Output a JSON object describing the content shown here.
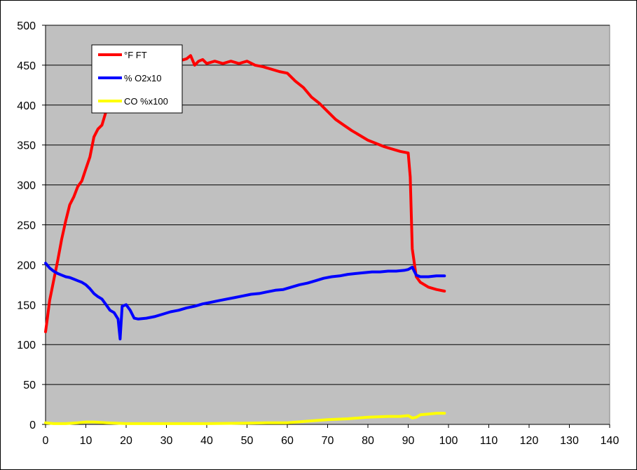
{
  "chart_data": {
    "type": "line",
    "title": "",
    "xlabel": "",
    "ylabel": "",
    "xlim": [
      0,
      140
    ],
    "ylim": [
      0,
      500
    ],
    "x_ticks": [
      0,
      10,
      20,
      30,
      40,
      50,
      60,
      70,
      80,
      90,
      100,
      110,
      120,
      130,
      140
    ],
    "y_ticks": [
      0,
      50,
      100,
      150,
      200,
      250,
      300,
      350,
      400,
      450,
      500
    ],
    "grid": "horizontal",
    "plot_background": "#C0C0C0",
    "legend_position": "top-left",
    "series": [
      {
        "name": "°F FT",
        "color": "#FF0000",
        "points": [
          [
            0,
            116
          ],
          [
            0.5,
            135
          ],
          [
            1,
            155
          ],
          [
            2,
            180
          ],
          [
            3,
            205
          ],
          [
            4,
            232
          ],
          [
            5,
            255
          ],
          [
            6,
            275
          ],
          [
            7,
            285
          ],
          [
            8,
            298
          ],
          [
            9,
            305
          ],
          [
            10,
            320
          ],
          [
            11,
            335
          ],
          [
            12,
            360
          ],
          [
            13,
            370
          ],
          [
            14,
            375
          ],
          [
            15,
            392
          ],
          [
            16,
            405
          ],
          [
            17,
            415
          ],
          [
            18,
            425
          ],
          [
            19,
            432
          ],
          [
            20,
            437
          ],
          [
            22,
            442
          ],
          [
            24,
            446
          ],
          [
            26,
            449
          ],
          [
            28,
            451
          ],
          [
            30,
            452
          ],
          [
            33,
            455
          ],
          [
            35,
            458
          ],
          [
            36,
            462
          ],
          [
            37,
            450
          ],
          [
            38,
            455
          ],
          [
            39,
            457
          ],
          [
            40,
            452
          ],
          [
            42,
            455
          ],
          [
            44,
            452
          ],
          [
            46,
            455
          ],
          [
            48,
            452
          ],
          [
            50,
            455
          ],
          [
            52,
            450
          ],
          [
            54,
            448
          ],
          [
            56,
            445
          ],
          [
            58,
            442
          ],
          [
            60,
            440
          ],
          [
            62,
            430
          ],
          [
            64,
            422
          ],
          [
            66,
            410
          ],
          [
            68,
            402
          ],
          [
            70,
            392
          ],
          [
            72,
            382
          ],
          [
            74,
            375
          ],
          [
            76,
            368
          ],
          [
            78,
            362
          ],
          [
            80,
            356
          ],
          [
            82,
            352
          ],
          [
            84,
            348
          ],
          [
            86,
            345
          ],
          [
            88,
            342
          ],
          [
            90,
            340
          ],
          [
            90.5,
            310
          ],
          [
            91,
            220
          ],
          [
            92,
            185
          ],
          [
            93,
            178
          ],
          [
            95,
            172
          ],
          [
            97,
            169
          ],
          [
            99,
            167
          ]
        ]
      },
      {
        "name": "% O2x10",
        "color": "#0000FF",
        "points": [
          [
            0,
            202
          ],
          [
            1,
            196
          ],
          [
            2,
            192
          ],
          [
            3,
            189
          ],
          [
            4,
            187
          ],
          [
            5,
            185
          ],
          [
            6,
            184
          ],
          [
            7,
            182
          ],
          [
            8,
            180
          ],
          [
            9,
            178
          ],
          [
            10,
            175
          ],
          [
            11,
            170
          ],
          [
            12,
            164
          ],
          [
            13,
            160
          ],
          [
            14,
            157
          ],
          [
            15,
            150
          ],
          [
            16,
            143
          ],
          [
            17,
            140
          ],
          [
            18,
            132
          ],
          [
            18.5,
            107
          ],
          [
            19,
            148
          ],
          [
            20,
            150
          ],
          [
            21,
            143
          ],
          [
            22,
            133
          ],
          [
            23,
            132
          ],
          [
            25,
            133
          ],
          [
            27,
            135
          ],
          [
            29,
            138
          ],
          [
            31,
            141
          ],
          [
            33,
            143
          ],
          [
            35,
            146
          ],
          [
            37,
            148
          ],
          [
            39,
            151
          ],
          [
            41,
            153
          ],
          [
            43,
            155
          ],
          [
            45,
            157
          ],
          [
            47,
            159
          ],
          [
            49,
            161
          ],
          [
            51,
            163
          ],
          [
            53,
            164
          ],
          [
            55,
            166
          ],
          [
            57,
            168
          ],
          [
            59,
            169
          ],
          [
            61,
            172
          ],
          [
            63,
            175
          ],
          [
            65,
            177
          ],
          [
            67,
            180
          ],
          [
            69,
            183
          ],
          [
            71,
            185
          ],
          [
            73,
            186
          ],
          [
            75,
            188
          ],
          [
            77,
            189
          ],
          [
            79,
            190
          ],
          [
            81,
            191
          ],
          [
            83,
            191
          ],
          [
            85,
            192
          ],
          [
            87,
            192
          ],
          [
            89,
            193
          ],
          [
            90,
            194
          ],
          [
            91,
            197
          ],
          [
            92,
            187
          ],
          [
            93,
            185
          ],
          [
            95,
            185
          ],
          [
            97,
            186
          ],
          [
            99,
            186
          ]
        ]
      },
      {
        "name": "CO %x100",
        "color": "#FFFF00",
        "points": [
          [
            0,
            2
          ],
          [
            2,
            1
          ],
          [
            5,
            1
          ],
          [
            8,
            2
          ],
          [
            10,
            3
          ],
          [
            12,
            3
          ],
          [
            15,
            2
          ],
          [
            20,
            1
          ],
          [
            30,
            1
          ],
          [
            40,
            1
          ],
          [
            50,
            1.5
          ],
          [
            55,
            2
          ],
          [
            60,
            2
          ],
          [
            65,
            4
          ],
          [
            70,
            6
          ],
          [
            75,
            7
          ],
          [
            80,
            9
          ],
          [
            85,
            10
          ],
          [
            88,
            10
          ],
          [
            90,
            11
          ],
          [
            91,
            8
          ],
          [
            92,
            9
          ],
          [
            93,
            12
          ],
          [
            95,
            13
          ],
          [
            97,
            14
          ],
          [
            99,
            14
          ]
        ]
      }
    ]
  }
}
